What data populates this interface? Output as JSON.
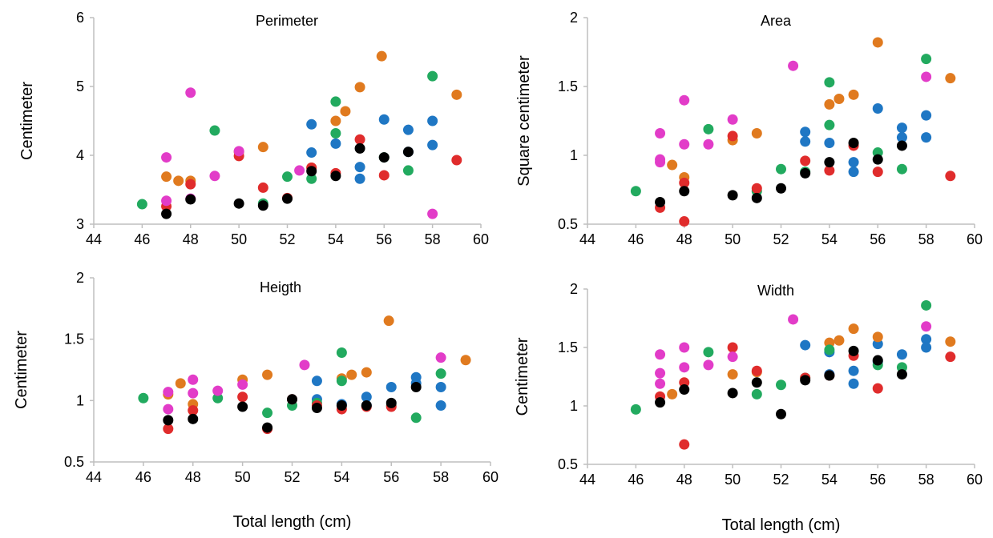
{
  "colors": {
    "blue": "#1f77c4",
    "orange": "#e07a1f",
    "gray": "#22aa5f",
    "yellow": "#e02c2c",
    "magenta": "#e23cc8",
    "black": "#000000"
  },
  "chart_data": [
    {
      "type": "scatter",
      "title": "Perimeter",
      "ylabel": "Centimeter",
      "xlabel": "",
      "xlim": [
        44,
        60
      ],
      "ylim": [
        3,
        6
      ],
      "xticks": [
        "44",
        "46",
        "48",
        "50",
        "52",
        "54",
        "56",
        "58",
        "60"
      ],
      "yticks": [
        "3",
        "4",
        "5",
        "6"
      ],
      "series": [
        {
          "color": "blue",
          "points": [
            [
              53,
              4.45
            ],
            [
              53,
              4.04
            ],
            [
              54,
              4.17
            ],
            [
              55,
              3.83
            ],
            [
              55,
              3.66
            ],
            [
              56,
              4.52
            ],
            [
              57,
              4.37
            ],
            [
              57,
              4.05
            ],
            [
              58,
              4.5
            ],
            [
              58,
              4.15
            ]
          ]
        },
        {
          "color": "orange",
          "points": [
            [
              47,
              3.69
            ],
            [
              47.5,
              3.63
            ],
            [
              48,
              3.63
            ],
            [
              50,
              4.05
            ],
            [
              51,
              4.12
            ],
            [
              53,
              3.82
            ],
            [
              54,
              4.5
            ],
            [
              54.4,
              4.64
            ],
            [
              55,
              4.99
            ],
            [
              55.9,
              5.44
            ],
            [
              59,
              4.88
            ]
          ]
        },
        {
          "color": "gray",
          "points": [
            [
              46,
              3.29
            ],
            [
              49,
              4.36
            ],
            [
              51,
              3.3
            ],
            [
              52,
              3.69
            ],
            [
              53,
              3.66
            ],
            [
              54,
              4.78
            ],
            [
              54,
              4.32
            ],
            [
              56,
              3.97
            ],
            [
              57,
              3.78
            ],
            [
              58,
              5.15
            ]
          ]
        },
        {
          "color": "yellow",
          "points": [
            [
              47,
              3.26
            ],
            [
              48,
              3.58
            ],
            [
              50,
              3.99
            ],
            [
              51,
              3.53
            ],
            [
              52,
              3.38
            ],
            [
              53,
              3.82
            ],
            [
              54,
              3.74
            ],
            [
              55,
              4.23
            ],
            [
              56,
              3.71
            ],
            [
              59,
              3.93
            ]
          ]
        },
        {
          "color": "magenta",
          "points": [
            [
              47,
              3.97
            ],
            [
              47,
              3.34
            ],
            [
              48,
              4.91
            ],
            [
              48,
              3.37
            ],
            [
              49,
              3.7
            ],
            [
              50,
              4.06
            ],
            [
              52.5,
              3.78
            ],
            [
              58,
              3.15
            ]
          ]
        },
        {
          "color": "black",
          "points": [
            [
              47,
              3.15
            ],
            [
              48,
              3.36
            ],
            [
              50,
              3.3
            ],
            [
              51,
              3.27
            ],
            [
              52,
              3.37
            ],
            [
              53,
              3.77
            ],
            [
              54,
              3.7
            ],
            [
              55,
              4.1
            ],
            [
              56,
              3.97
            ],
            [
              57,
              4.05
            ]
          ]
        }
      ]
    },
    {
      "type": "scatter",
      "title": "Area",
      "ylabel": "Square centimeter",
      "xlabel": "",
      "xlim": [
        44,
        60
      ],
      "ylim": [
        0.5,
        2
      ],
      "xticks": [
        "44",
        "46",
        "48",
        "50",
        "52",
        "54",
        "56",
        "58",
        "60"
      ],
      "yticks": [
        "0.5",
        "1",
        "1.5",
        "2"
      ],
      "series": [
        {
          "color": "blue",
          "points": [
            [
              53,
              1.17
            ],
            [
              53,
              1.1
            ],
            [
              54,
              1.09
            ],
            [
              55,
              0.95
            ],
            [
              55,
              0.88
            ],
            [
              56,
              1.34
            ],
            [
              57,
              1.2
            ],
            [
              57,
              1.13
            ],
            [
              58,
              1.29
            ],
            [
              58,
              1.13
            ]
          ]
        },
        {
          "color": "orange",
          "points": [
            [
              47.5,
              0.93
            ],
            [
              48,
              0.84
            ],
            [
              50,
              1.11
            ],
            [
              51,
              1.16
            ],
            [
              54,
              1.37
            ],
            [
              54.4,
              1.41
            ],
            [
              55,
              1.44
            ],
            [
              56,
              1.82
            ],
            [
              59,
              1.56
            ]
          ]
        },
        {
          "color": "gray",
          "points": [
            [
              46,
              0.74
            ],
            [
              49,
              1.19
            ],
            [
              51,
              0.74
            ],
            [
              52,
              0.9
            ],
            [
              53,
              0.88
            ],
            [
              54,
              1.53
            ],
            [
              54,
              1.22
            ],
            [
              56,
              1.02
            ],
            [
              57,
              0.9
            ],
            [
              58,
              1.7
            ]
          ]
        },
        {
          "color": "yellow",
          "points": [
            [
              47,
              0.62
            ],
            [
              48,
              0.8
            ],
            [
              48,
              0.52
            ],
            [
              50,
              1.14
            ],
            [
              51,
              0.76
            ],
            [
              53,
              0.96
            ],
            [
              54,
              0.89
            ],
            [
              55,
              1.07
            ],
            [
              56,
              0.88
            ],
            [
              59,
              0.85
            ]
          ]
        },
        {
          "color": "magenta",
          "points": [
            [
              47,
              1.16
            ],
            [
              47,
              0.97
            ],
            [
              47,
              0.95
            ],
            [
              48,
              1.4
            ],
            [
              48,
              1.08
            ],
            [
              49,
              1.08
            ],
            [
              50,
              1.26
            ],
            [
              52.5,
              1.65
            ],
            [
              58,
              1.57
            ]
          ]
        },
        {
          "color": "black",
          "points": [
            [
              47,
              0.66
            ],
            [
              48,
              0.74
            ],
            [
              50,
              0.71
            ],
            [
              51,
              0.69
            ],
            [
              52,
              0.76
            ],
            [
              53,
              0.87
            ],
            [
              54,
              0.95
            ],
            [
              55,
              1.09
            ],
            [
              56,
              0.97
            ],
            [
              57,
              1.07
            ]
          ]
        }
      ]
    },
    {
      "type": "scatter",
      "title": "Heigth",
      "ylabel": "Centimeter",
      "xlabel": "Total length (cm)",
      "xlim": [
        44,
        60
      ],
      "ylim": [
        0.5,
        2
      ],
      "xticks": [
        "44",
        "46",
        "48",
        "50",
        "52",
        "54",
        "56",
        "58",
        "60"
      ],
      "yticks": [
        "0.5",
        "1",
        "1.5",
        "2"
      ],
      "series": [
        {
          "color": "blue",
          "points": [
            [
              53,
              1.16
            ],
            [
              53,
              1.01
            ],
            [
              54,
              0.97
            ],
            [
              55,
              1.03
            ],
            [
              55,
              0.96
            ],
            [
              56,
              1.11
            ],
            [
              57,
              1.19
            ],
            [
              57,
              1.14
            ],
            [
              58,
              1.11
            ],
            [
              58,
              0.96
            ]
          ]
        },
        {
          "color": "orange",
          "points": [
            [
              47,
              1.05
            ],
            [
              47.5,
              1.14
            ],
            [
              48,
              0.97
            ],
            [
              50,
              1.17
            ],
            [
              51,
              1.21
            ],
            [
              54,
              1.18
            ],
            [
              54.4,
              1.21
            ],
            [
              55,
              1.23
            ],
            [
              55.9,
              1.65
            ],
            [
              59,
              1.33
            ]
          ]
        },
        {
          "color": "gray",
          "points": [
            [
              46,
              1.02
            ],
            [
              49,
              1.02
            ],
            [
              51,
              0.9
            ],
            [
              52,
              0.96
            ],
            [
              53,
              0.98
            ],
            [
              54,
              1.39
            ],
            [
              54,
              1.16
            ],
            [
              56,
              0.96
            ],
            [
              57,
              0.86
            ],
            [
              58,
              1.22
            ]
          ]
        },
        {
          "color": "yellow",
          "points": [
            [
              47,
              0.77
            ],
            [
              48,
              0.92
            ],
            [
              50,
              1.03
            ],
            [
              51,
              0.77
            ],
            [
              52,
              1.01
            ],
            [
              53,
              0.96
            ],
            [
              54,
              0.93
            ],
            [
              55,
              0.95
            ],
            [
              56,
              0.95
            ]
          ]
        },
        {
          "color": "magenta",
          "points": [
            [
              47,
              1.07
            ],
            [
              47,
              0.93
            ],
            [
              48,
              1.17
            ],
            [
              48,
              1.06
            ],
            [
              49,
              1.08
            ],
            [
              50,
              1.13
            ],
            [
              52.5,
              1.29
            ],
            [
              58,
              1.35
            ]
          ]
        },
        {
          "color": "black",
          "points": [
            [
              47,
              0.84
            ],
            [
              48,
              0.85
            ],
            [
              50,
              0.95
            ],
            [
              51,
              0.78
            ],
            [
              52,
              1.01
            ],
            [
              53,
              0.94
            ],
            [
              54,
              0.96
            ],
            [
              55,
              0.96
            ],
            [
              56,
              0.98
            ],
            [
              57,
              1.11
            ]
          ]
        }
      ]
    },
    {
      "type": "scatter",
      "title": "Width",
      "ylabel": "Centimeter",
      "xlabel": "Total length (cm)",
      "xlim": [
        44,
        60
      ],
      "ylim": [
        0.5,
        2
      ],
      "xticks": [
        "44",
        "46",
        "48",
        "50",
        "52",
        "54",
        "56",
        "58",
        "60"
      ],
      "yticks": [
        "0.5",
        "1",
        "1.5",
        "2"
      ],
      "series": [
        {
          "color": "blue",
          "points": [
            [
              53,
              1.52
            ],
            [
              54,
              1.46
            ],
            [
              54,
              1.27
            ],
            [
              55,
              1.3
            ],
            [
              55,
              1.19
            ],
            [
              56,
              1.53
            ],
            [
              56,
              1.38
            ],
            [
              57,
              1.44
            ],
            [
              58,
              1.57
            ],
            [
              58,
              1.5
            ]
          ]
        },
        {
          "color": "orange",
          "points": [
            [
              47.5,
              1.1
            ],
            [
              50,
              1.27
            ],
            [
              51,
              1.29
            ],
            [
              54,
              1.54
            ],
            [
              54.4,
              1.56
            ],
            [
              55,
              1.66
            ],
            [
              56,
              1.59
            ],
            [
              59,
              1.55
            ]
          ]
        },
        {
          "color": "gray",
          "points": [
            [
              46,
              0.97
            ],
            [
              49,
              1.46
            ],
            [
              51,
              1.1
            ],
            [
              52,
              1.18
            ],
            [
              53,
              1.24
            ],
            [
              54,
              1.48
            ],
            [
              56,
              1.35
            ],
            [
              57,
              1.33
            ],
            [
              58,
              1.86
            ]
          ]
        },
        {
          "color": "yellow",
          "points": [
            [
              47,
              1.08
            ],
            [
              48,
              1.2
            ],
            [
              48,
              0.67
            ],
            [
              50,
              1.5
            ],
            [
              51,
              1.3
            ],
            [
              53,
              1.24
            ],
            [
              54,
              1.26
            ],
            [
              55,
              1.43
            ],
            [
              56,
              1.15
            ],
            [
              59,
              1.42
            ]
          ]
        },
        {
          "color": "magenta",
          "points": [
            [
              47,
              1.44
            ],
            [
              47,
              1.28
            ],
            [
              47,
              1.19
            ],
            [
              48,
              1.5
            ],
            [
              48,
              1.33
            ],
            [
              49,
              1.35
            ],
            [
              50,
              1.42
            ],
            [
              52.5,
              1.74
            ],
            [
              58,
              1.68
            ]
          ]
        },
        {
          "color": "black",
          "points": [
            [
              47,
              1.03
            ],
            [
              48,
              1.14
            ],
            [
              50,
              1.11
            ],
            [
              51,
              1.2
            ],
            [
              52,
              0.93
            ],
            [
              53,
              1.22
            ],
            [
              54,
              1.26
            ],
            [
              55,
              1.47
            ],
            [
              56,
              1.39
            ],
            [
              57,
              1.27
            ]
          ]
        }
      ]
    }
  ]
}
